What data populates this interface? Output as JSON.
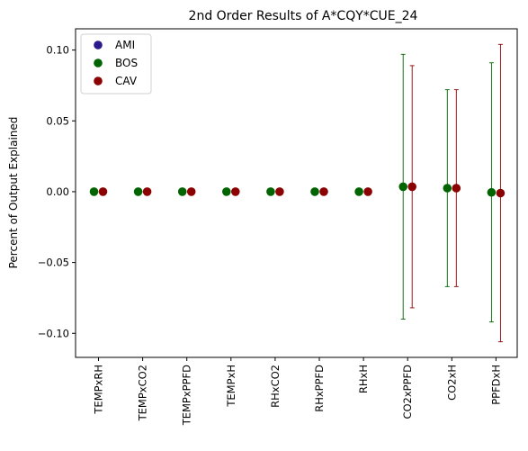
{
  "chart_data": {
    "type": "scatter",
    "title": "2nd Order Results of A*CQY*CUE_24",
    "xlabel": "",
    "ylabel": "Percent of Output Explained",
    "categories": [
      "TEMPxRH",
      "TEMPxCO2",
      "TEMPxPPFD",
      "TEMPxH",
      "RHxCO2",
      "RHxPPFD",
      "RHxH",
      "CO2xPPFD",
      "CO2xH",
      "PPFDxH"
    ],
    "ylim": [
      -0.117,
      0.115
    ],
    "yticks": [
      "0.10",
      "0.05",
      "0.00",
      "−0.05",
      "−0.10"
    ],
    "ytick_values": [
      0.1,
      0.05,
      0.0,
      -0.05,
      -0.1
    ],
    "grid": false,
    "legend_placement": "top-left",
    "series": [
      {
        "name": "AMI",
        "color": "#2b1a8c",
        "values": [],
        "err_low": [],
        "err_high": []
      },
      {
        "name": "BOS",
        "color": "#006400",
        "values": [
          0.0,
          0.0,
          0.0,
          0.0,
          0.0,
          0.0,
          0.0,
          0.0035,
          0.0025,
          -0.0005
        ],
        "err_low": [
          0.0,
          0.0,
          0.0,
          0.0,
          0.0,
          0.0,
          0.0,
          -0.09,
          -0.067,
          -0.092
        ],
        "err_high": [
          0.0,
          0.0,
          0.0,
          0.0,
          0.0,
          0.0,
          0.0,
          0.097,
          0.072,
          0.091
        ]
      },
      {
        "name": "CAV",
        "color": "#8b0000",
        "values": [
          0.0,
          0.0,
          0.0,
          0.0,
          0.0,
          0.0,
          0.0,
          0.0035,
          0.0025,
          -0.001
        ],
        "err_low": [
          0.0,
          0.0,
          0.0,
          0.0,
          0.0,
          0.0,
          0.0,
          -0.082,
          -0.067,
          -0.106
        ],
        "err_high": [
          0.0,
          0.0,
          0.0,
          0.0,
          0.0,
          0.0,
          0.0,
          0.089,
          0.072,
          0.104
        ]
      }
    ]
  }
}
